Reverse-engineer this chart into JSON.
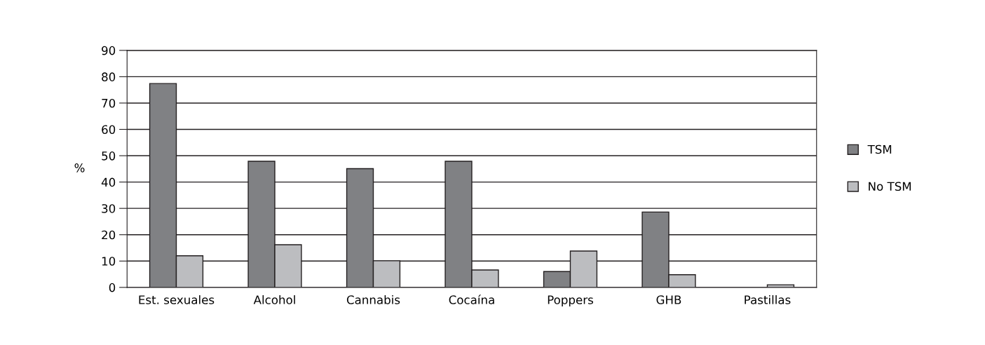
{
  "chart_data": {
    "type": "bar",
    "ylabel": "%",
    "categories": [
      "Est. sexuales",
      "Alcohol",
      "Cannabis",
      "Cocaína",
      "Poppers",
      "GHB",
      "Pastillas"
    ],
    "series": [
      {
        "name": "TSM",
        "color": "#808184",
        "values": [
          77.4,
          47.9,
          45.1,
          47.9,
          6.0,
          28.6,
          null
        ]
      },
      {
        "name": "No TSM",
        "color": "#bcbdc0",
        "values": [
          12.0,
          16.2,
          10.1,
          6.6,
          13.8,
          4.8,
          1.0
        ]
      }
    ],
    "ylim": [
      0,
      90
    ],
    "yticks": [
      0,
      10,
      20,
      30,
      40,
      50,
      60,
      70,
      80,
      90
    ],
    "grid": "y",
    "legend": "right"
  }
}
